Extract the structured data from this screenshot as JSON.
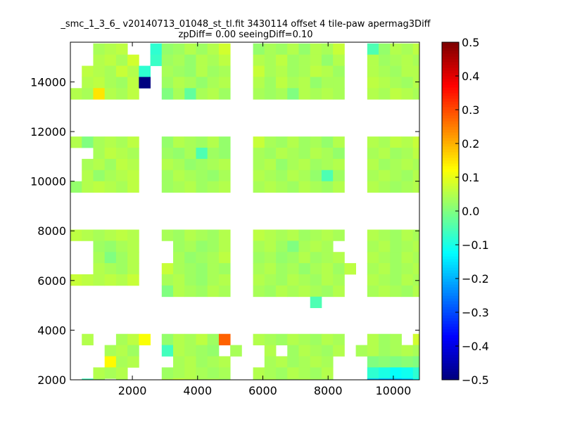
{
  "chart_data": {
    "type": "heatmap",
    "title_lines": [
      "_smc_1_3_6_ v20140713_01048_st_tl.fit 3430114 offset 4 tile-paw apermag3Diff",
      "zpDiff= 0.00 seeingDiff=0.10"
    ],
    "xlim": [
      100,
      10800
    ],
    "ylim": [
      2000,
      15600
    ],
    "xticks": [
      2000,
      4000,
      6000,
      8000,
      10000
    ],
    "yticks": [
      2000,
      4000,
      6000,
      8000,
      10000,
      12000,
      14000
    ],
    "colorbar": {
      "vmin": -0.5,
      "vmax": 0.5,
      "colormap": "jet",
      "ticks": [
        -0.5,
        -0.4,
        -0.3,
        -0.2,
        -0.1,
        0.0,
        0.1,
        0.2,
        0.3,
        0.4,
        0.5
      ],
      "tick_labels": [
        "−0.5",
        "−0.4",
        "−0.3",
        "−0.2",
        "−0.1",
        "0.0",
        "0.1",
        "0.2",
        "0.3",
        "0.4",
        "0.5"
      ]
    },
    "cell_size": {
      "dx": 350,
      "dy": 450
    },
    "x_columns": [
      275,
      625,
      975,
      1325,
      1675,
      2025,
      2375,
      2725,
      3075,
      3425,
      3775,
      4125,
      4475,
      4825,
      5175,
      5525,
      5875,
      6225,
      6575,
      6925,
      7275,
      7625,
      7975,
      8325,
      8675,
      9025,
      9375,
      9725,
      10075,
      10425,
      10775
    ],
    "y_rows": [
      {
        "y": 15325,
        "v": [
          null,
          null,
          0.04,
          0.05,
          0.06,
          null,
          null,
          -0.08,
          0.02,
          0.03,
          0.05,
          0.03,
          0.05,
          0.08,
          null,
          null,
          0.02,
          0.04,
          0.03,
          0.05,
          0.02,
          0.05,
          0.04,
          0.07,
          null,
          null,
          -0.05,
          0.02,
          0.05,
          0.04,
          0.06
        ]
      },
      {
        "y": 14875,
        "v": [
          null,
          null,
          0.05,
          0.06,
          0.04,
          0.08,
          null,
          -0.07,
          0.03,
          0.04,
          0.02,
          0.05,
          0.04,
          0.06,
          null,
          null,
          0.05,
          0.04,
          0.06,
          0.03,
          0.04,
          0.05,
          0.02,
          0.05,
          null,
          null,
          0.05,
          0.03,
          0.04,
          0.05,
          0.04
        ]
      },
      {
        "y": 14425,
        "v": [
          null,
          0.06,
          0.05,
          0.04,
          0.07,
          0.05,
          -0.08,
          null,
          0.04,
          0.03,
          0.02,
          0.05,
          0.03,
          0.04,
          null,
          null,
          0.07,
          0.04,
          0.05,
          0.03,
          0.04,
          0.06,
          0.05,
          0.03,
          null,
          null,
          0.05,
          0.04,
          0.03,
          0.05,
          0.05
        ]
      },
      {
        "y": 13975,
        "v": [
          null,
          0.05,
          0.06,
          0.04,
          0.03,
          0.06,
          -0.5,
          null,
          0.03,
          0.05,
          0.04,
          0.02,
          0.04,
          0.05,
          null,
          null,
          0.05,
          0.03,
          0.06,
          0.04,
          0.05,
          0.02,
          0.04,
          0.04,
          null,
          null,
          0.06,
          0.05,
          0.04,
          0.03,
          0.05
        ]
      },
      {
        "y": 13525,
        "v": [
          0.05,
          0.04,
          0.15,
          0.05,
          0.04,
          0.06,
          null,
          null,
          0.0,
          0.04,
          -0.03,
          0.04,
          0.05,
          0.03,
          null,
          null,
          0.04,
          0.03,
          0.04,
          0.0,
          0.05,
          0.04,
          0.05,
          0.04,
          null,
          null,
          0.05,
          0.04,
          0.06,
          0.05,
          0.04
        ]
      },
      {
        "y": 11575,
        "v": [
          0.05,
          0.0,
          0.04,
          0.05,
          0.04,
          0.06,
          null,
          null,
          0.02,
          0.05,
          0.04,
          0.03,
          0.05,
          0.02,
          null,
          null,
          0.07,
          0.04,
          0.03,
          0.05,
          0.03,
          0.04,
          0.02,
          0.05,
          null,
          null,
          0.05,
          0.04,
          0.06,
          0.05,
          0.07
        ]
      },
      {
        "y": 11125,
        "v": [
          null,
          null,
          0.04,
          0.06,
          0.05,
          0.04,
          null,
          null,
          0.03,
          0.02,
          0.04,
          -0.05,
          0.03,
          0.02,
          null,
          null,
          0.04,
          0.03,
          0.05,
          0.04,
          0.03,
          0.05,
          0.04,
          0.02,
          null,
          null,
          0.04,
          0.05,
          0.03,
          0.04,
          0.06
        ]
      },
      {
        "y": 10675,
        "v": [
          null,
          0.04,
          0.05,
          0.03,
          0.06,
          0.05,
          null,
          null,
          0.05,
          0.04,
          0.02,
          0.03,
          0.04,
          0.05,
          null,
          null,
          0.04,
          0.05,
          0.02,
          0.04,
          0.05,
          0.03,
          0.04,
          0.05,
          null,
          null,
          0.05,
          0.03,
          0.04,
          0.05,
          0.04
        ]
      },
      {
        "y": 10225,
        "v": [
          null,
          0.05,
          0.02,
          0.04,
          0.05,
          0.06,
          null,
          null,
          0.03,
          0.05,
          0.04,
          0.03,
          0.02,
          0.04,
          null,
          null,
          0.05,
          0.04,
          0.03,
          0.05,
          0.04,
          0.02,
          -0.05,
          0.03,
          null,
          null,
          0.04,
          0.05,
          0.04,
          0.03,
          0.05
        ]
      },
      {
        "y": 9775,
        "v": [
          0.02,
          0.05,
          0.06,
          0.05,
          0.04,
          0.06,
          null,
          null,
          0.03,
          0.04,
          0.05,
          0.03,
          0.04,
          0.05,
          null,
          null,
          0.04,
          0.05,
          0.04,
          0.03,
          0.05,
          0.04,
          0.03,
          0.05,
          null,
          null,
          0.05,
          0.04,
          0.03,
          0.04,
          0.05
        ]
      },
      {
        "y": 7825,
        "v": [
          0.06,
          0.05,
          0.04,
          0.05,
          0.06,
          0.05,
          null,
          null,
          0.04,
          0.03,
          0.05,
          0.04,
          0.03,
          0.05,
          null,
          null,
          0.06,
          0.05,
          0.04,
          0.05,
          0.03,
          0.04,
          0.05,
          0.04,
          null,
          null,
          0.05,
          0.04,
          0.03,
          0.05,
          0.04
        ]
      },
      {
        "y": 7375,
        "v": [
          null,
          null,
          0.03,
          0.02,
          0.04,
          0.05,
          null,
          null,
          null,
          0.03,
          0.04,
          0.02,
          0.03,
          0.05,
          null,
          null,
          0.04,
          0.05,
          0.03,
          0.0,
          0.04,
          0.05,
          0.04,
          null,
          null,
          null,
          0.04,
          0.05,
          0.03,
          0.04,
          0.05
        ]
      },
      {
        "y": 6925,
        "v": [
          null,
          null,
          0.04,
          0.0,
          0.03,
          0.05,
          null,
          null,
          null,
          0.04,
          0.02,
          0.03,
          0.04,
          0.06,
          null,
          null,
          0.03,
          0.04,
          0.02,
          0.03,
          0.05,
          0.03,
          0.04,
          0.05,
          null,
          null,
          0.05,
          0.04,
          0.03,
          0.05,
          0.04
        ]
      },
      {
        "y": 6475,
        "v": [
          null,
          null,
          0.05,
          0.04,
          0.03,
          0.05,
          null,
          null,
          0.07,
          0.04,
          0.03,
          0.02,
          0.04,
          0.03,
          null,
          null,
          0.04,
          0.05,
          0.03,
          0.04,
          0.02,
          0.04,
          0.05,
          0.03,
          0.06,
          null,
          0.04,
          0.05,
          0.03,
          0.04,
          0.05
        ]
      },
      {
        "y": 6025,
        "v": [
          0.07,
          0.06,
          0.05,
          0.06,
          0.05,
          0.07,
          null,
          null,
          0.04,
          0.05,
          0.03,
          0.02,
          0.04,
          0.05,
          null,
          null,
          0.05,
          0.04,
          0.03,
          0.05,
          0.04,
          0.03,
          0.05,
          0.04,
          null,
          null,
          0.05,
          0.04,
          0.03,
          0.05,
          0.04
        ]
      },
      {
        "y": 5575,
        "v": [
          null,
          null,
          null,
          null,
          null,
          null,
          null,
          null,
          0.0,
          0.05,
          0.04,
          0.03,
          0.05,
          0.04,
          null,
          null,
          0.04,
          0.03,
          0.05,
          0.04,
          0.05,
          0.04,
          0.03,
          0.05,
          null,
          null,
          0.04,
          0.05,
          0.04,
          0.03,
          0.05
        ]
      },
      {
        "y": 5125,
        "v": [
          null,
          null,
          null,
          null,
          null,
          null,
          null,
          null,
          null,
          null,
          null,
          null,
          null,
          null,
          null,
          null,
          null,
          null,
          null,
          null,
          null,
          -0.05,
          null,
          null,
          null,
          null,
          null,
          null,
          null,
          null,
          null
        ]
      },
      {
        "y": 3625,
        "v": [
          null,
          0.05,
          null,
          null,
          0.04,
          0.06,
          0.12,
          null,
          0.02,
          0.05,
          0.04,
          0.06,
          0.03,
          0.28,
          null,
          null,
          0.05,
          0.04,
          0.03,
          0.05,
          0.04,
          0.03,
          0.05,
          0.04,
          null,
          null,
          0.05,
          0.03,
          0.04,
          null,
          0.08
        ]
      },
      {
        "y": 3175,
        "v": [
          null,
          null,
          null,
          0.04,
          0.05,
          0.03,
          null,
          null,
          -0.06,
          0.05,
          0.04,
          0.03,
          0.02,
          null,
          0.04,
          null,
          null,
          0.05,
          null,
          0.03,
          0.05,
          0.04,
          0.03,
          0.05,
          null,
          0.04,
          0.05,
          0.03,
          0.04,
          0.05,
          0.04
        ]
      },
      {
        "y": 2725,
        "v": [
          null,
          null,
          null,
          0.13,
          0.04,
          0.05,
          null,
          null,
          null,
          0.04,
          0.05,
          0.03,
          0.04,
          0.05,
          null,
          null,
          null,
          0.04,
          0.05,
          0.03,
          0.04,
          0.05,
          0.04,
          null,
          null,
          null,
          0.0,
          0.01,
          0.0,
          0.01,
          0.0
        ]
      },
      {
        "y": 2275,
        "v": [
          null,
          null,
          0.05,
          0.04,
          0.05,
          null,
          null,
          null,
          0.03,
          0.04,
          0.05,
          0.04,
          0.03,
          0.04,
          null,
          null,
          0.05,
          0.04,
          0.03,
          0.05,
          0.04,
          0.03,
          0.05,
          null,
          null,
          null,
          -0.08,
          -0.1,
          -0.12,
          -0.11,
          -0.08
        ]
      },
      {
        "y": 1825,
        "v": [
          null,
          -0.06,
          0.03,
          null,
          0.04,
          null,
          null,
          null,
          0.05,
          0.08,
          0.06,
          0.04,
          0.05,
          0.03,
          null,
          null,
          0.04,
          0.05,
          0.03,
          0.04,
          0.05,
          0.04,
          0.03,
          null,
          null,
          null,
          -0.2,
          -0.22,
          -0.22,
          -0.2,
          -0.12
        ]
      }
    ]
  }
}
